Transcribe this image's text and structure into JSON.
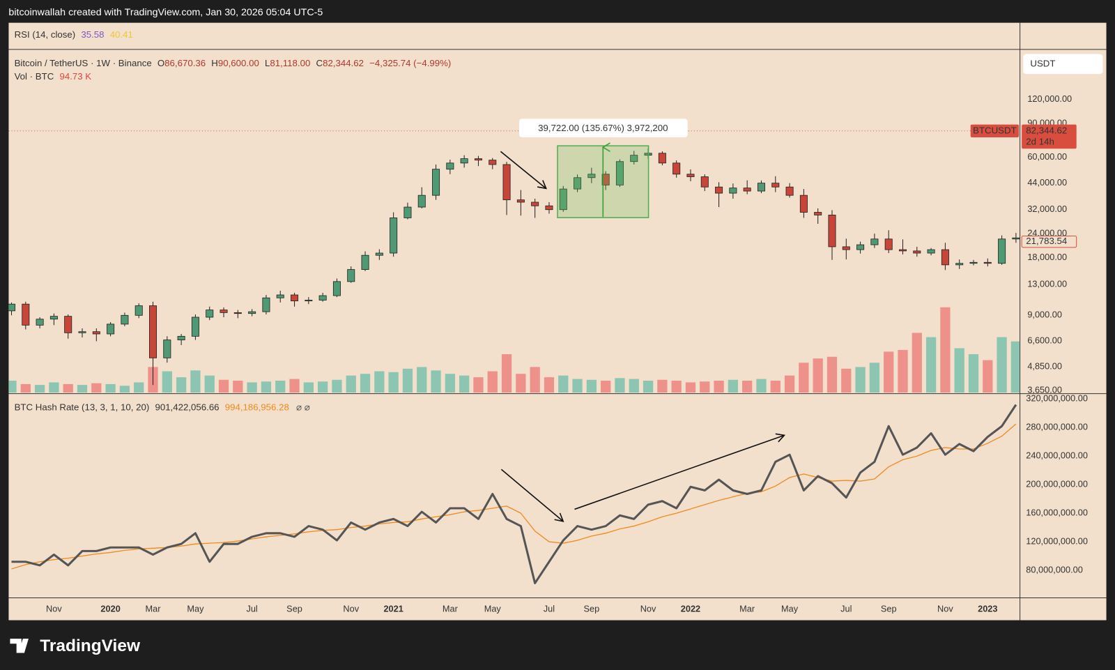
{
  "header": {
    "credit": "bitcoinwallah created with TradingView.com, Jan 30, 2026 05:04 UTC-5"
  },
  "rsi": {
    "label": "RSI (14, close)",
    "value_a": "35.58",
    "value_b": "40.41"
  },
  "legend": {
    "symbol": "Bitcoin / TetherUS · 1W · Binance",
    "ohlc": [
      {
        "key": "O",
        "value": "86,670.36"
      },
      {
        "key": "H",
        "value": "90,600.00"
      },
      {
        "key": "L",
        "value": "81,118.00"
      },
      {
        "key": "C",
        "value": "82,344.62"
      }
    ],
    "change": "−4,325.74 (−4.99%)",
    "vol_label": "Vol · BTC",
    "vol_value": "94.73 K"
  },
  "currency": "USDT",
  "badges": {
    "symbol": "BTCUSDT",
    "last": {
      "value": 82344.62,
      "label": "82,344.62"
    },
    "countdown": "2d 14h",
    "close": {
      "value": 21783.54,
      "label": "21,783.54"
    }
  },
  "measure": {
    "label": "39,722.00 (135.67%) 3,972,200"
  },
  "footer": {
    "brand": "TradingView"
  },
  "chart_data": [
    {
      "type": "candlestick",
      "log_scale": true,
      "grid": false,
      "up_color": "#4f9a74",
      "down_color": "#c8453a",
      "volume_up_color": "#8cc5b2",
      "volume_down_color": "#ee918a",
      "ylim": [
        3530,
        218000
      ],
      "yticks": [
        {
          "value": 3650,
          "label": "3,650.00"
        },
        {
          "value": 4850,
          "label": "4,850.00"
        },
        {
          "value": 6600,
          "label": "6,600.00"
        },
        {
          "value": 9000,
          "label": "9,000.00"
        },
        {
          "value": 13000,
          "label": "13,000.00"
        },
        {
          "value": 18000,
          "label": "18,000.00"
        },
        {
          "value": 24000,
          "label": "24,000.00"
        },
        {
          "value": 32000,
          "label": "32,000.00"
        },
        {
          "value": 44000,
          "label": "44,000.00"
        },
        {
          "value": 60000,
          "label": "60,000.00"
        },
        {
          "value": 90000,
          "label": "90,000.00"
        },
        {
          "value": 120000,
          "label": "120,000.00"
        }
      ],
      "categories": [
        null,
        null,
        null,
        "Nov",
        null,
        null,
        null,
        "2020",
        null,
        null,
        "Mar",
        null,
        null,
        "May",
        null,
        null,
        null,
        "Jul",
        null,
        null,
        "Sep",
        null,
        null,
        null,
        "Nov",
        null,
        null,
        "2021",
        null,
        null,
        null,
        "Mar",
        null,
        null,
        "May",
        null,
        null,
        null,
        "Jul",
        null,
        null,
        "Sep",
        null,
        null,
        null,
        "Nov",
        null,
        null,
        "2022",
        null,
        null,
        null,
        "Mar",
        null,
        null,
        "May",
        null,
        null,
        null,
        "Jul",
        null,
        null,
        "Sep",
        null,
        null,
        null,
        "Nov",
        null,
        null,
        "2023",
        null,
        null
      ],
      "open": [
        9500,
        10300,
        8000,
        8600,
        8900,
        7300,
        7400,
        7200,
        8100,
        9000,
        10100,
        5400,
        6700,
        7000,
        8800,
        9600,
        9300,
        9200,
        9400,
        11100,
        11500,
        10700,
        10800,
        11400,
        13500,
        15600,
        18500,
        19000,
        29000,
        33000,
        38000,
        52000,
        56000,
        59000,
        58000,
        55000,
        36000,
        35000,
        33500,
        32000,
        41000,
        47000,
        49000,
        43000,
        57000,
        61500,
        63000,
        56000,
        49000,
        47500,
        42000,
        39000,
        41500,
        40000,
        44000,
        42000,
        38000,
        31000,
        30000,
        20500,
        19800,
        21000,
        22500,
        19800,
        19500,
        19000,
        19800,
        16500,
        16800,
        17000,
        16800,
        22500
      ],
      "high": [
        10500,
        10600,
        8800,
        9200,
        9100,
        7700,
        7700,
        8300,
        9300,
        10400,
        10600,
        7000,
        7200,
        9100,
        10000,
        9900,
        9600,
        9700,
        11500,
        12100,
        11800,
        11200,
        11800,
        14000,
        16200,
        19400,
        19900,
        31000,
        34800,
        41900,
        55000,
        58300,
        61500,
        61000,
        59500,
        56800,
        40500,
        36500,
        35000,
        42500,
        48800,
        52900,
        50800,
        58500,
        64800,
        66900,
        64500,
        57800,
        51900,
        48900,
        44500,
        43800,
        45500,
        45400,
        47800,
        44000,
        41000,
        32500,
        31800,
        22600,
        21800,
        24000,
        25000,
        22400,
        20500,
        20200,
        21500,
        17600,
        17500,
        17800,
        23500,
        24200
      ],
      "low": [
        9000,
        7600,
        7700,
        8000,
        6800,
        6900,
        6600,
        7000,
        7900,
        8700,
        3900,
        5100,
        6300,
        6700,
        8500,
        8800,
        8700,
        8900,
        9100,
        10500,
        10000,
        10300,
        10600,
        11200,
        13300,
        15300,
        17500,
        18200,
        28500,
        32500,
        36000,
        49000,
        53000,
        54000,
        52000,
        30000,
        29800,
        29000,
        30500,
        31200,
        39500,
        44000,
        40500,
        42000,
        55000,
        59000,
        54500,
        47000,
        45000,
        40000,
        33000,
        36500,
        38500,
        39000,
        39500,
        37000,
        29000,
        27000,
        17500,
        17600,
        18900,
        20200,
        19000,
        18700,
        18200,
        18500,
        15500,
        15700,
        16400,
        16200,
        16500,
        21500
      ],
      "close": [
        10300,
        8000,
        8600,
        8900,
        7300,
        7400,
        7200,
        8100,
        9000,
        10100,
        5400,
        6700,
        7000,
        8800,
        9600,
        9300,
        9200,
        9400,
        11100,
        11500,
        10700,
        10800,
        11400,
        13500,
        15600,
        18500,
        19000,
        29000,
        33000,
        38000,
        52000,
        56000,
        59000,
        58000,
        55000,
        36000,
        35000,
        33500,
        32000,
        41000,
        47000,
        49000,
        43000,
        57000,
        61500,
        63000,
        56000,
        49000,
        47500,
        42000,
        39000,
        41500,
        40000,
        44000,
        42000,
        38000,
        31000,
        30000,
        20500,
        19800,
        21000,
        22500,
        19800,
        19500,
        19000,
        19800,
        16500,
        16800,
        17000,
        16800,
        22500,
        22800
      ],
      "volume": [
        14,
        10,
        9,
        12,
        10,
        9,
        11,
        10,
        8,
        12,
        30,
        25,
        18,
        26,
        20,
        15,
        14,
        12,
        13,
        14,
        16,
        12,
        13,
        15,
        20,
        22,
        25,
        24,
        28,
        30,
        26,
        22,
        20,
        18,
        25,
        45,
        22,
        30,
        18,
        20,
        16,
        15,
        14,
        17,
        16,
        14,
        15,
        14,
        12,
        13,
        14,
        15,
        14,
        16,
        14,
        20,
        35,
        40,
        42,
        28,
        30,
        35,
        48,
        50,
        70,
        65,
        100,
        52,
        45,
        38,
        65,
        60
      ]
    },
    {
      "type": "line",
      "title": "BTC Hash Rate (13, 3, 1, 10, 20)",
      "value_a": "901,422,056.66",
      "value_b": "994,186,956.28",
      "grid": false,
      "ylim": [
        42000000,
        326000000
      ],
      "yticks": [
        {
          "value": 80000000,
          "label": "80,000,000.00"
        },
        {
          "value": 120000000,
          "label": "120,000,000.00"
        },
        {
          "value": 160000000,
          "label": "160,000,000.00"
        },
        {
          "value": 200000000,
          "label": "200,000,000.00"
        },
        {
          "value": 240000000,
          "label": "240,000,000.00"
        },
        {
          "value": 280000000,
          "label": "280,000,000.00"
        },
        {
          "value": 320000000,
          "label": "320,000,000.00"
        }
      ],
      "series": [
        {
          "color": "#555555",
          "values": [
            92000000,
            92000000,
            87000000,
            102000000,
            87000000,
            107000000,
            107000000,
            112000000,
            112000000,
            112000000,
            102000000,
            112000000,
            117000000,
            132000000,
            92000000,
            117000000,
            117000000,
            127000000,
            132000000,
            132000000,
            127000000,
            142000000,
            137000000,
            122000000,
            147000000,
            137000000,
            147000000,
            152000000,
            142000000,
            162000000,
            147000000,
            167000000,
            167000000,
            152000000,
            187000000,
            152000000,
            142000000,
            62000000,
            92000000,
            122000000,
            142000000,
            137000000,
            142000000,
            157000000,
            152000000,
            172000000,
            177000000,
            167000000,
            197000000,
            192000000,
            207000000,
            192000000,
            187000000,
            192000000,
            232000000,
            242000000,
            192000000,
            212000000,
            202000000,
            182000000,
            217000000,
            232000000,
            282000000,
            242000000,
            252000000,
            272000000,
            242000000,
            257000000,
            247000000,
            267000000,
            282000000,
            312000000
          ]
        },
        {
          "color": "#f28a1e",
          "values": [
            82000000,
            88000000,
            92000000,
            95000000,
            97000000,
            100000000,
            103000000,
            105000000,
            108000000,
            110000000,
            111000000,
            112000000,
            114000000,
            117000000,
            118000000,
            119000000,
            121000000,
            124000000,
            127000000,
            129000000,
            131000000,
            134000000,
            136000000,
            137000000,
            140000000,
            142000000,
            145000000,
            147000000,
            148000000,
            152000000,
            155000000,
            158000000,
            162000000,
            164000000,
            167000000,
            170000000,
            160000000,
            135000000,
            120000000,
            118000000,
            122000000,
            128000000,
            132000000,
            138000000,
            142000000,
            148000000,
            155000000,
            160000000,
            166000000,
            172000000,
            178000000,
            183000000,
            188000000,
            190000000,
            198000000,
            210000000,
            215000000,
            210000000,
            205000000,
            206000000,
            205000000,
            208000000,
            225000000,
            235000000,
            240000000,
            248000000,
            252000000,
            250000000,
            250000000,
            258000000,
            268000000,
            285000000
          ]
        }
      ]
    }
  ]
}
